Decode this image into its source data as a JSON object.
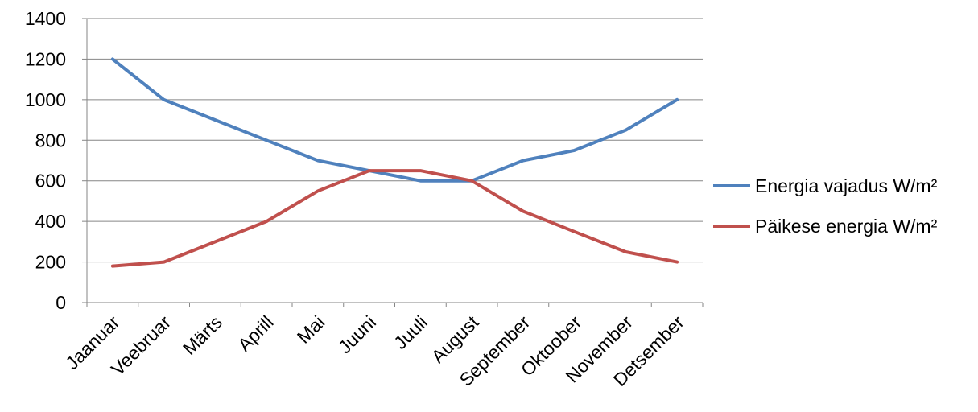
{
  "chart_data": {
    "type": "line",
    "categories": [
      "Jaanuar",
      "Veebruar",
      "Märts",
      "Aprill",
      "Mai",
      "Juuni",
      "Juuli",
      "August",
      "September",
      "Oktoober",
      "November",
      "Detsember"
    ],
    "series": [
      {
        "name": "Energia vajadus W/m²",
        "color": "#4f81bd",
        "values": [
          1200,
          1000,
          900,
          800,
          700,
          650,
          600,
          600,
          700,
          750,
          850,
          1000
        ]
      },
      {
        "name": "Päikese energia W/m²",
        "color": "#c0504d",
        "values": [
          180,
          200,
          300,
          400,
          550,
          650,
          650,
          600,
          450,
          350,
          250,
          200
        ]
      }
    ],
    "ylim": [
      0,
      1400
    ],
    "yticks": [
      0,
      200,
      400,
      600,
      800,
      1000,
      1200,
      1400
    ],
    "grid": true,
    "legend": "right"
  }
}
